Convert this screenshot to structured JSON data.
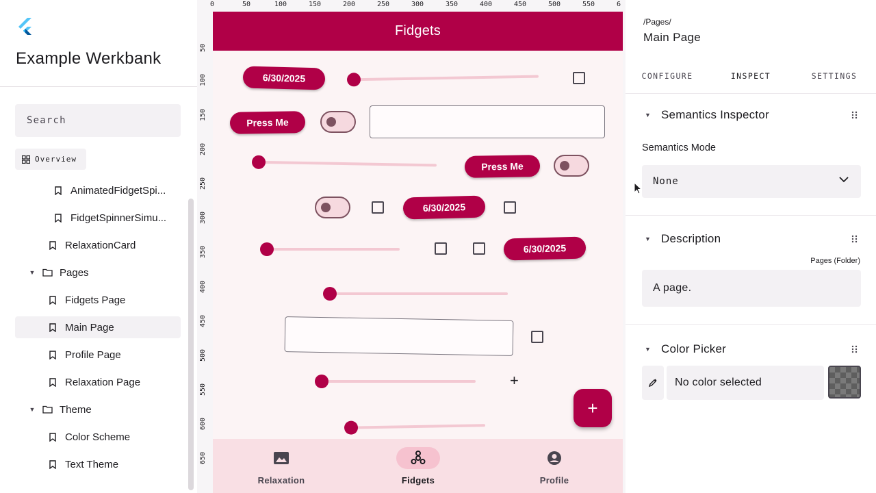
{
  "sidebar": {
    "title": "Example Werkbank",
    "search_placeholder": "Search",
    "overview_label": "Overview",
    "tree": [
      {
        "label": "AnimatedFidgetSpi...",
        "type": "use-case",
        "expanded": null
      },
      {
        "label": "FidgetSpinnerSimu...",
        "type": "use-case",
        "expanded": null
      },
      {
        "label": "RelaxationCard",
        "type": "use-case",
        "expanded": null
      },
      {
        "label": "Pages",
        "type": "folder",
        "expanded": true
      },
      {
        "label": "Fidgets Page",
        "type": "use-case",
        "expanded": null
      },
      {
        "label": "Main Page",
        "type": "use-case",
        "expanded": null,
        "selected": true
      },
      {
        "label": "Profile Page",
        "type": "use-case",
        "expanded": null
      },
      {
        "label": "Relaxation Page",
        "type": "use-case",
        "expanded": null
      },
      {
        "label": "Theme",
        "type": "folder",
        "expanded": true
      },
      {
        "label": "Color Scheme",
        "type": "use-case",
        "expanded": null
      },
      {
        "label": "Text Theme",
        "type": "use-case",
        "expanded": null
      }
    ]
  },
  "canvas": {
    "ruler_top": [
      "0",
      "50",
      "100",
      "150",
      "200",
      "250",
      "300",
      "350",
      "400",
      "450",
      "500",
      "550",
      "6"
    ],
    "ruler_left": [
      "50",
      "100",
      "150",
      "200",
      "250",
      "300",
      "350",
      "400",
      "450",
      "500",
      "550",
      "600",
      "650"
    ],
    "appbar_title": "Fidgets",
    "date_chip": "6/30/2025",
    "button_label": "Press Me",
    "fab_glyph": "+",
    "plus_glyph": "+",
    "nav": [
      {
        "label": "Relaxation",
        "icon": "image-icon",
        "active": false
      },
      {
        "label": "Fidgets",
        "icon": "fidget-spinner-icon",
        "active": true
      },
      {
        "label": "Profile",
        "icon": "account-circle-icon",
        "active": false
      }
    ]
  },
  "panel": {
    "breadcrumb": "/Pages/",
    "page_name": "Main Page",
    "tabs": [
      "CONFIGURE",
      "INSPECT",
      "SETTINGS"
    ],
    "active_tab": "INSPECT",
    "semantics": {
      "title": "Semantics Inspector",
      "mode_label": "Semantics Mode",
      "mode_value": "None"
    },
    "description": {
      "title": "Description",
      "tag": "Pages (Folder)",
      "text": "A page."
    },
    "color_picker": {
      "title": "Color Picker",
      "value": "No color selected"
    }
  },
  "colors": {
    "primary": "#b00047",
    "nav_background": "#f9dfe4",
    "surface": "#fcf4f5"
  }
}
